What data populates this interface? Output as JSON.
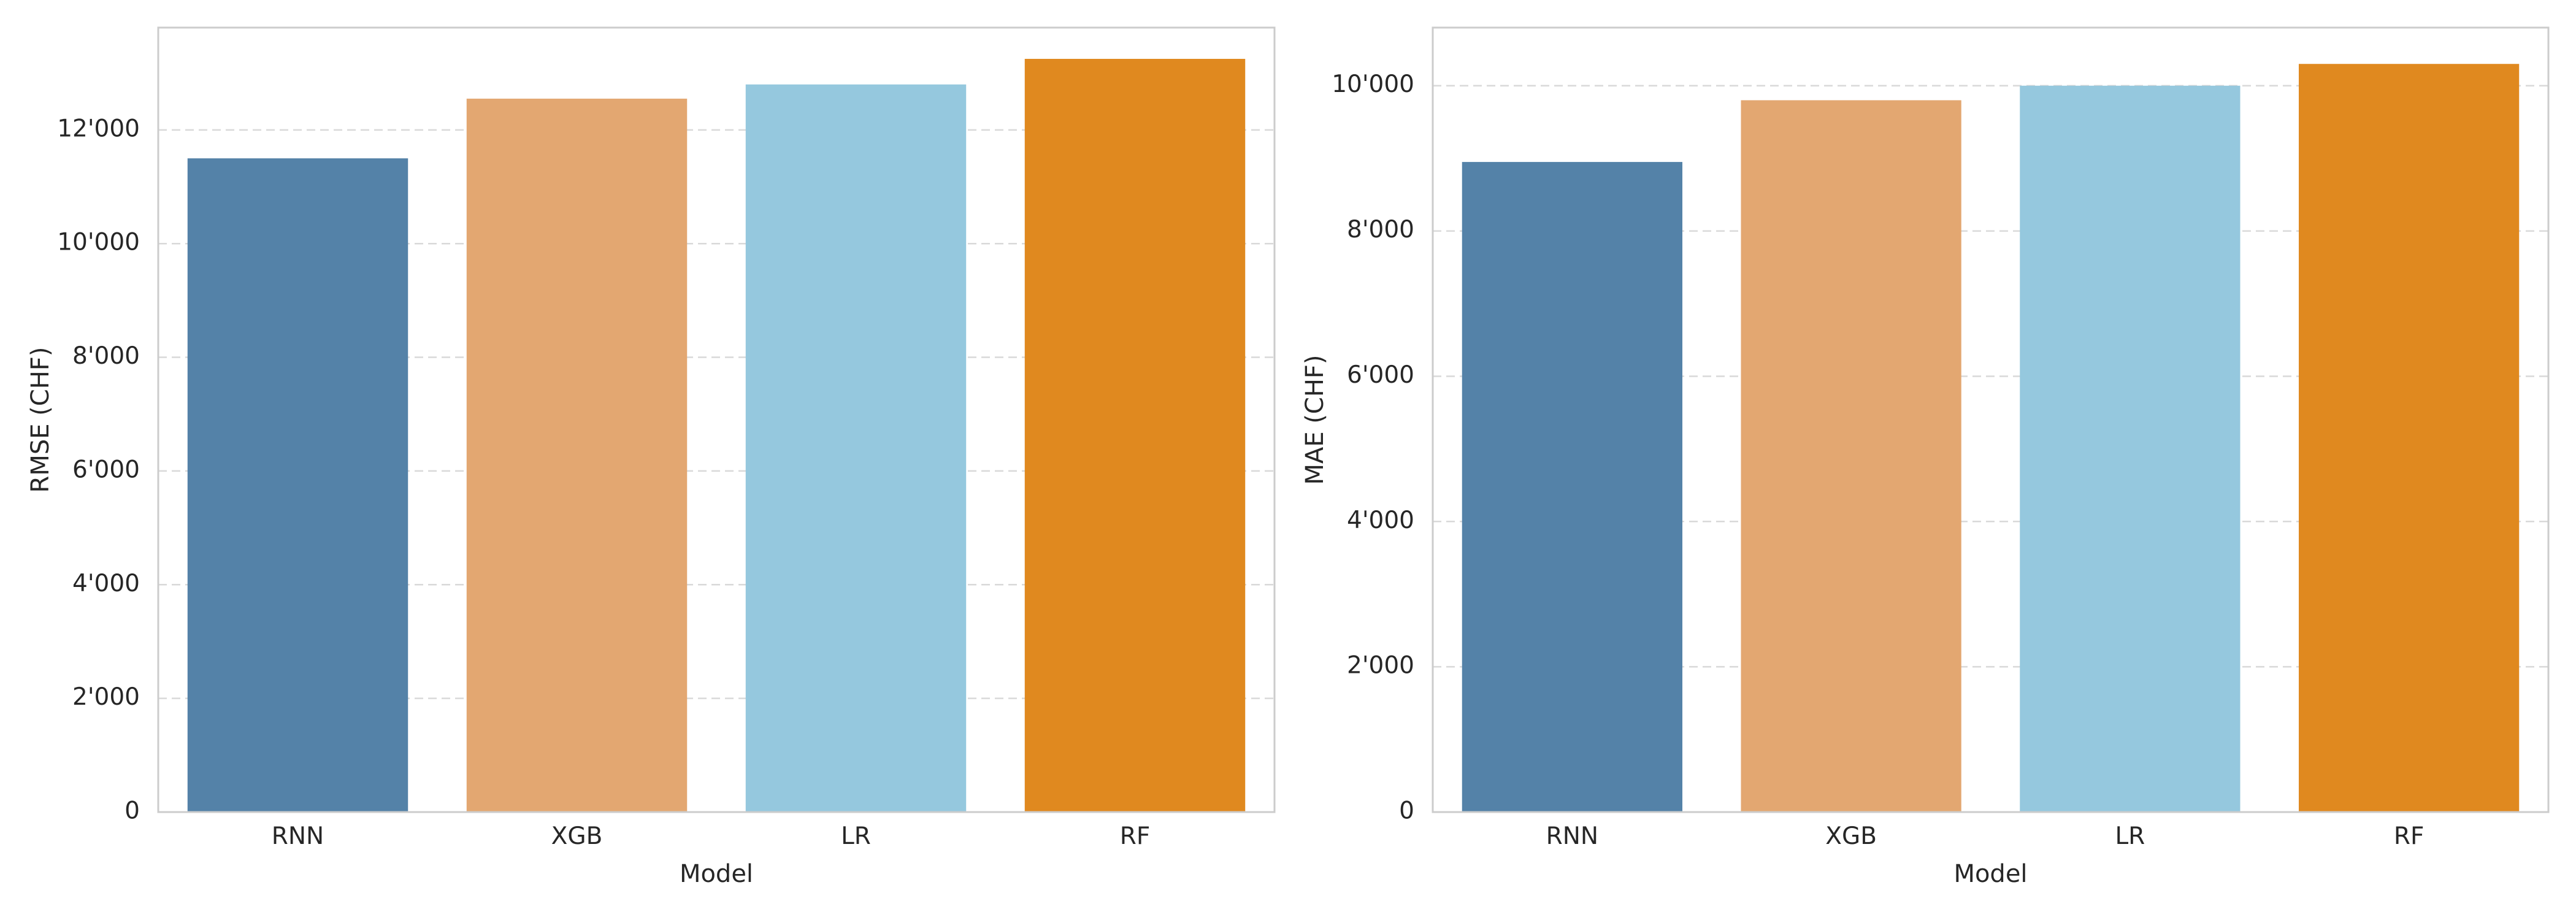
{
  "chart_data": [
    {
      "type": "bar",
      "title": "",
      "xlabel": "Model",
      "ylabel": "RMSE (CHF)",
      "categories": [
        "RNN",
        "XGB",
        "LR",
        "RF"
      ],
      "values": [
        11500,
        12550,
        12800,
        13250
      ],
      "colors": [
        "#5482a8",
        "#e3a771",
        "#95c8de",
        "#e0891f"
      ],
      "ylim": [
        0,
        13800
      ],
      "yticks": [
        0,
        2000,
        4000,
        6000,
        8000,
        10000,
        12000
      ],
      "ytick_labels": [
        "0",
        "2'000",
        "4'000",
        "6'000",
        "8'000",
        "10'000",
        "12'000"
      ],
      "grid": "horizontal dashed",
      "legend": "none"
    },
    {
      "type": "bar",
      "title": "",
      "xlabel": "Model",
      "ylabel": "MAE (CHF)",
      "categories": [
        "RNN",
        "XGB",
        "LR",
        "RF"
      ],
      "values": [
        8950,
        9800,
        10000,
        10300
      ],
      "colors": [
        "#5482a8",
        "#e3a771",
        "#95c8de",
        "#e0891f"
      ],
      "ylim": [
        0,
        10800
      ],
      "yticks": [
        0,
        2000,
        4000,
        6000,
        8000,
        10000
      ],
      "ytick_labels": [
        "0",
        "2'000",
        "4'000",
        "6'000",
        "8'000",
        "10'000"
      ],
      "grid": "horizontal dashed",
      "legend": "none"
    }
  ]
}
